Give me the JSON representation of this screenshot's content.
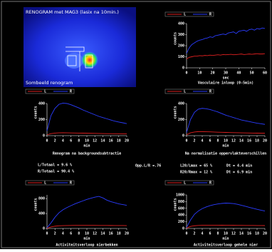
{
  "image_panel": {
    "title": "RENOGRAM met MAG3 (lasix na 10min.)",
    "caption": "Sombeeld renogram"
  },
  "summary": {
    "left_total": "L/Totaal = 9.6 %",
    "right_total": "R/Totaal = 90.4 %",
    "area_ratio": "Opp.L/R =.76",
    "left_ratio": "L20/Lmax = 65 %",
    "left_dt": "Dt = 4.4 min",
    "right_ratio": "R20/Rmax = 12 %",
    "right_dt": "Dt = 6.9 min"
  },
  "chart_data": [
    {
      "type": "line",
      "title": "Vasculaire inloop (0-5min)",
      "x_label": "sec",
      "y_label": "counts",
      "x": [
        0,
        2,
        4,
        6,
        8,
        10,
        12,
        14,
        16,
        18,
        20,
        22,
        24,
        26,
        28,
        30,
        32,
        34,
        36,
        38,
        40,
        42,
        44,
        46,
        48,
        50,
        52,
        54,
        56,
        58,
        60
      ],
      "xlim": [
        0,
        60
      ],
      "xticks": [
        0,
        10,
        20,
        30,
        40,
        50,
        60
      ],
      "ylim": [
        0,
        400
      ],
      "yticks": [
        0,
        100,
        200,
        300,
        400
      ],
      "series": [
        {
          "name": "L",
          "color": "#e02020",
          "values": [
            80,
            95,
            100,
            105,
            105,
            110,
            108,
            112,
            110,
            115,
            112,
            115,
            118,
            115,
            120,
            118,
            120,
            122,
            118,
            120,
            122,
            125,
            120,
            122,
            125,
            122,
            125,
            128,
            125,
            125,
            128
          ]
        },
        {
          "name": "R",
          "color": "#2a3cff",
          "values": [
            130,
            180,
            210,
            225,
            240,
            250,
            255,
            265,
            270,
            280,
            275,
            290,
            295,
            300,
            305,
            300,
            315,
            320,
            325,
            310,
            330,
            335,
            340,
            330,
            345,
            350,
            340,
            355,
            350,
            360,
            355
          ]
        }
      ]
    },
    {
      "type": "line",
      "title": "Renogram na backgroundsubtractie",
      "x_label": "min",
      "y_label": "counts",
      "x": [
        0,
        1,
        2,
        3,
        4,
        5,
        6,
        7,
        8,
        9,
        10,
        11,
        12,
        13,
        14,
        15,
        16,
        17,
        18,
        19,
        20
      ],
      "xlim": [
        0,
        20
      ],
      "xticks": [
        0,
        2,
        4,
        6,
        8,
        10,
        12,
        14,
        16,
        18,
        20
      ],
      "ylim": [
        0,
        400
      ],
      "yticks": [
        0,
        200,
        400
      ],
      "series": [
        {
          "name": "L",
          "color": "#e02020",
          "values": [
            10,
            25,
            32,
            35,
            36,
            35,
            34,
            33,
            32,
            31,
            30,
            29,
            28,
            27,
            26,
            25,
            25,
            24,
            24,
            23,
            22
          ]
        },
        {
          "name": "R",
          "color": "#2a3cff",
          "values": [
            60,
            250,
            340,
            390,
            405,
            400,
            385,
            365,
            345,
            320,
            300,
            280,
            260,
            240,
            225,
            210,
            195,
            180,
            170,
            160,
            150
          ]
        }
      ]
    },
    {
      "type": "line",
      "title": "Na normalisatie oppervlakteverschillen",
      "x_label": "min",
      "y_label": "counts",
      "x": [
        0,
        1,
        2,
        3,
        4,
        5,
        6,
        7,
        8,
        9,
        10,
        11,
        12,
        13,
        14,
        15,
        16,
        17,
        18,
        19,
        20
      ],
      "xlim": [
        0,
        20
      ],
      "xticks": [
        0,
        2,
        4,
        6,
        8,
        10,
        12,
        14,
        16,
        18,
        20
      ],
      "ylim": [
        0,
        400
      ],
      "yticks": [
        0,
        200,
        400
      ],
      "series": [
        {
          "name": "L",
          "color": "#e02020",
          "values": [
            10,
            35,
            45,
            50,
            50,
            48,
            47,
            45,
            43,
            42,
            40,
            38,
            37,
            36,
            35,
            34,
            33,
            32,
            31,
            30,
            30
          ]
        },
        {
          "name": "R",
          "color": "#2a3cff",
          "values": [
            40,
            200,
            290,
            330,
            340,
            335,
            325,
            310,
            295,
            275,
            255,
            240,
            225,
            210,
            195,
            185,
            175,
            165,
            155,
            148,
            140
          ]
        }
      ]
    },
    {
      "type": "line",
      "title": "Activiteitsverloop nierbekken",
      "x_label": "min",
      "y_label": "counts",
      "x": [
        0,
        1,
        2,
        3,
        4,
        5,
        6,
        7,
        8,
        9,
        10,
        11,
        12,
        13,
        14,
        15,
        16,
        17,
        18,
        19,
        20
      ],
      "xlim": [
        0,
        20
      ],
      "xticks": [
        0,
        2,
        4,
        6,
        8,
        10,
        12,
        14,
        16,
        18,
        20
      ],
      "ylim": [
        0,
        900
      ],
      "yticks": [
        0,
        400,
        800
      ],
      "series": [
        {
          "name": "L",
          "color": "#e02020",
          "values": [
            5,
            40,
            60,
            70,
            75,
            78,
            80,
            82,
            82,
            83,
            83,
            82,
            82,
            81,
            80,
            80,
            79,
            78,
            78,
            77,
            76
          ]
        },
        {
          "name": "R",
          "color": "#2a3cff",
          "values": [
            20,
            150,
            300,
            420,
            500,
            560,
            610,
            660,
            700,
            740,
            780,
            810,
            840,
            860,
            820,
            760,
            720,
            690,
            660,
            640,
            620
          ]
        }
      ]
    },
    {
      "type": "line",
      "title": "Activiteitsverloop gehele nier",
      "x_label": "min",
      "y_label": "counts",
      "x": [
        0,
        1,
        2,
        3,
        4,
        5,
        6,
        7,
        8,
        9,
        10,
        11,
        12,
        13,
        14,
        15,
        16,
        17,
        18,
        19,
        20
      ],
      "xlim": [
        0,
        20
      ],
      "xticks": [
        0,
        2,
        4,
        6,
        8,
        10,
        12,
        14,
        16,
        18,
        20
      ],
      "ylim": [
        0,
        1000
      ],
      "yticks": [
        0,
        200,
        400,
        600,
        800,
        1000
      ],
      "series": [
        {
          "name": "L",
          "color": "#e02020",
          "values": [
            10,
            60,
            80,
            90,
            95,
            97,
            98,
            98,
            97,
            96,
            95,
            94,
            93,
            92,
            91,
            90,
            89,
            88,
            87,
            86,
            85
          ]
        },
        {
          "name": "R",
          "color": "#2a3cff",
          "values": [
            30,
            250,
            420,
            520,
            590,
            640,
            680,
            710,
            730,
            745,
            755,
            750,
            740,
            720,
            690,
            660,
            630,
            600,
            570,
            545,
            520
          ]
        }
      ]
    }
  ]
}
